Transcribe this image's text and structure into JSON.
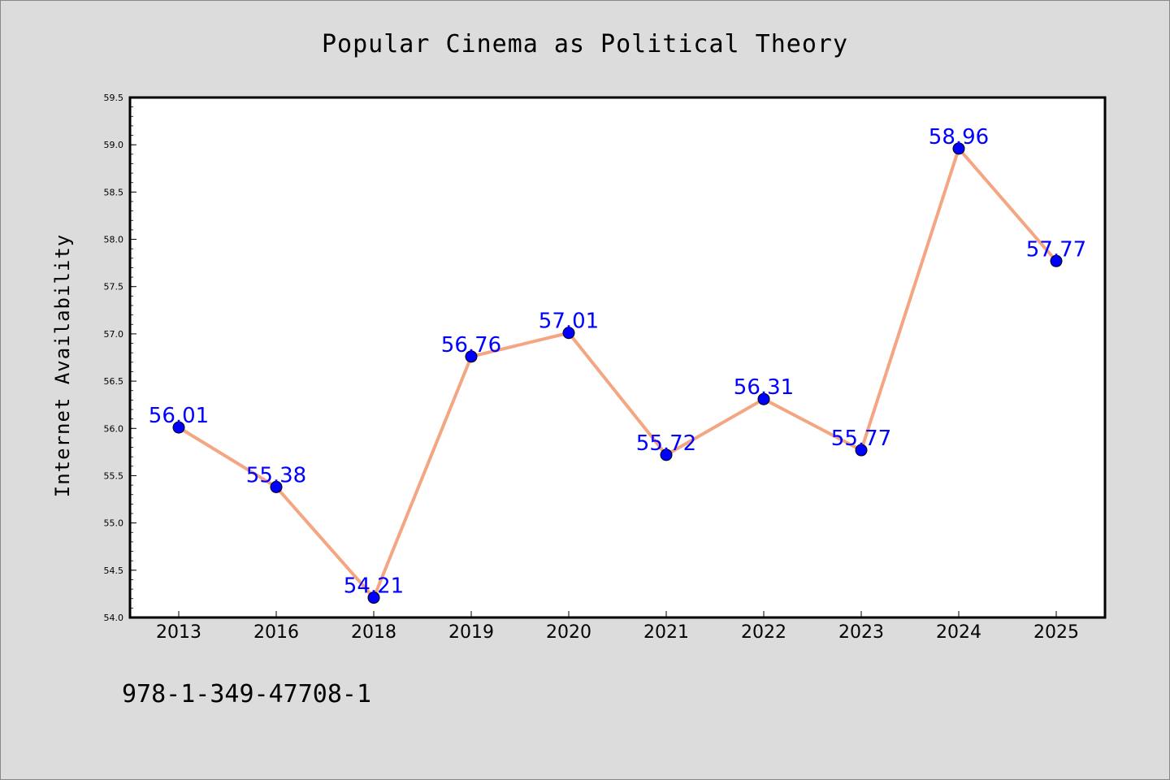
{
  "chart_data": {
    "type": "line",
    "title": "Popular Cinema as Political Theory",
    "xlabel": "",
    "ylabel": "Internet Availability",
    "categories": [
      "2013",
      "2016",
      "2018",
      "2019",
      "2020",
      "2021",
      "2022",
      "2023",
      "2024",
      "2025"
    ],
    "values": [
      56.01,
      55.38,
      54.21,
      56.76,
      57.01,
      55.72,
      56.31,
      55.77,
      58.96,
      57.77
    ],
    "data_labels": [
      "56.01",
      "55.38",
      "54.21",
      "56.76",
      "57.01",
      "55.72",
      "56.31",
      "55.77",
      "58.96",
      "57.77"
    ],
    "ylim": [
      54.0,
      59.5
    ],
    "yticks": [
      "54.0",
      "54.5",
      "55.0",
      "55.5",
      "56.0",
      "56.5",
      "57.0",
      "57.5",
      "58.0",
      "58.5",
      "59.0",
      "59.5"
    ],
    "grid": false,
    "legend": "none",
    "line_color": "#f4a582",
    "marker_color": "#0000ff",
    "label_color": "#0000ff",
    "background": "#dcdcdc",
    "plot_background": "#ffffff"
  },
  "footer_text": "978-1-349-47708-1"
}
